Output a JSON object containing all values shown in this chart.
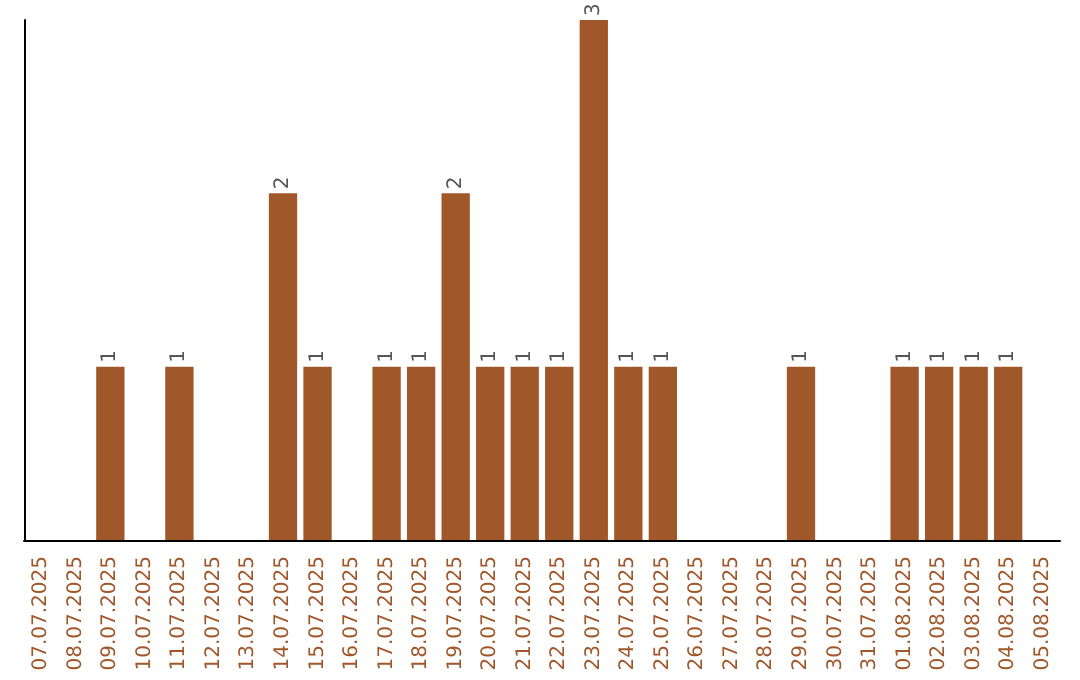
{
  "chart_data": {
    "type": "bar",
    "categories": [
      "07.07.2025",
      "08.07.2025",
      "09.07.2025",
      "10.07.2025",
      "11.07.2025",
      "12.07.2025",
      "13.07.2025",
      "14.07.2025",
      "15.07.2025",
      "16.07.2025",
      "17.07.2025",
      "18.07.2025",
      "19.07.2025",
      "20.07.2025",
      "21.07.2025",
      "22.07.2025",
      "23.07.2025",
      "24.07.2025",
      "25.07.2025",
      "26.07.2025",
      "27.07.2025",
      "28.07.2025",
      "29.07.2025",
      "30.07.2025",
      "31.07.2025",
      "01.08.2025",
      "02.08.2025",
      "03.08.2025",
      "04.08.2025",
      "05.08.2025"
    ],
    "values": [
      0,
      0,
      1,
      0,
      1,
      0,
      0,
      2,
      1,
      0,
      1,
      1,
      2,
      1,
      1,
      1,
      3,
      1,
      1,
      0,
      0,
      0,
      1,
      0,
      0,
      1,
      1,
      1,
      1,
      0
    ],
    "value_labels": [
      null,
      null,
      "1",
      null,
      "1",
      null,
      null,
      "2",
      "1",
      null,
      "1",
      "1",
      "2",
      "1",
      "1",
      "1",
      "3",
      "1",
      "1",
      null,
      null,
      null,
      "1",
      null,
      null,
      "1",
      "1",
      "1",
      "1",
      null
    ],
    "color": "#a0572a",
    "ylim": [
      0,
      3
    ],
    "tick_labels": "x"
  }
}
